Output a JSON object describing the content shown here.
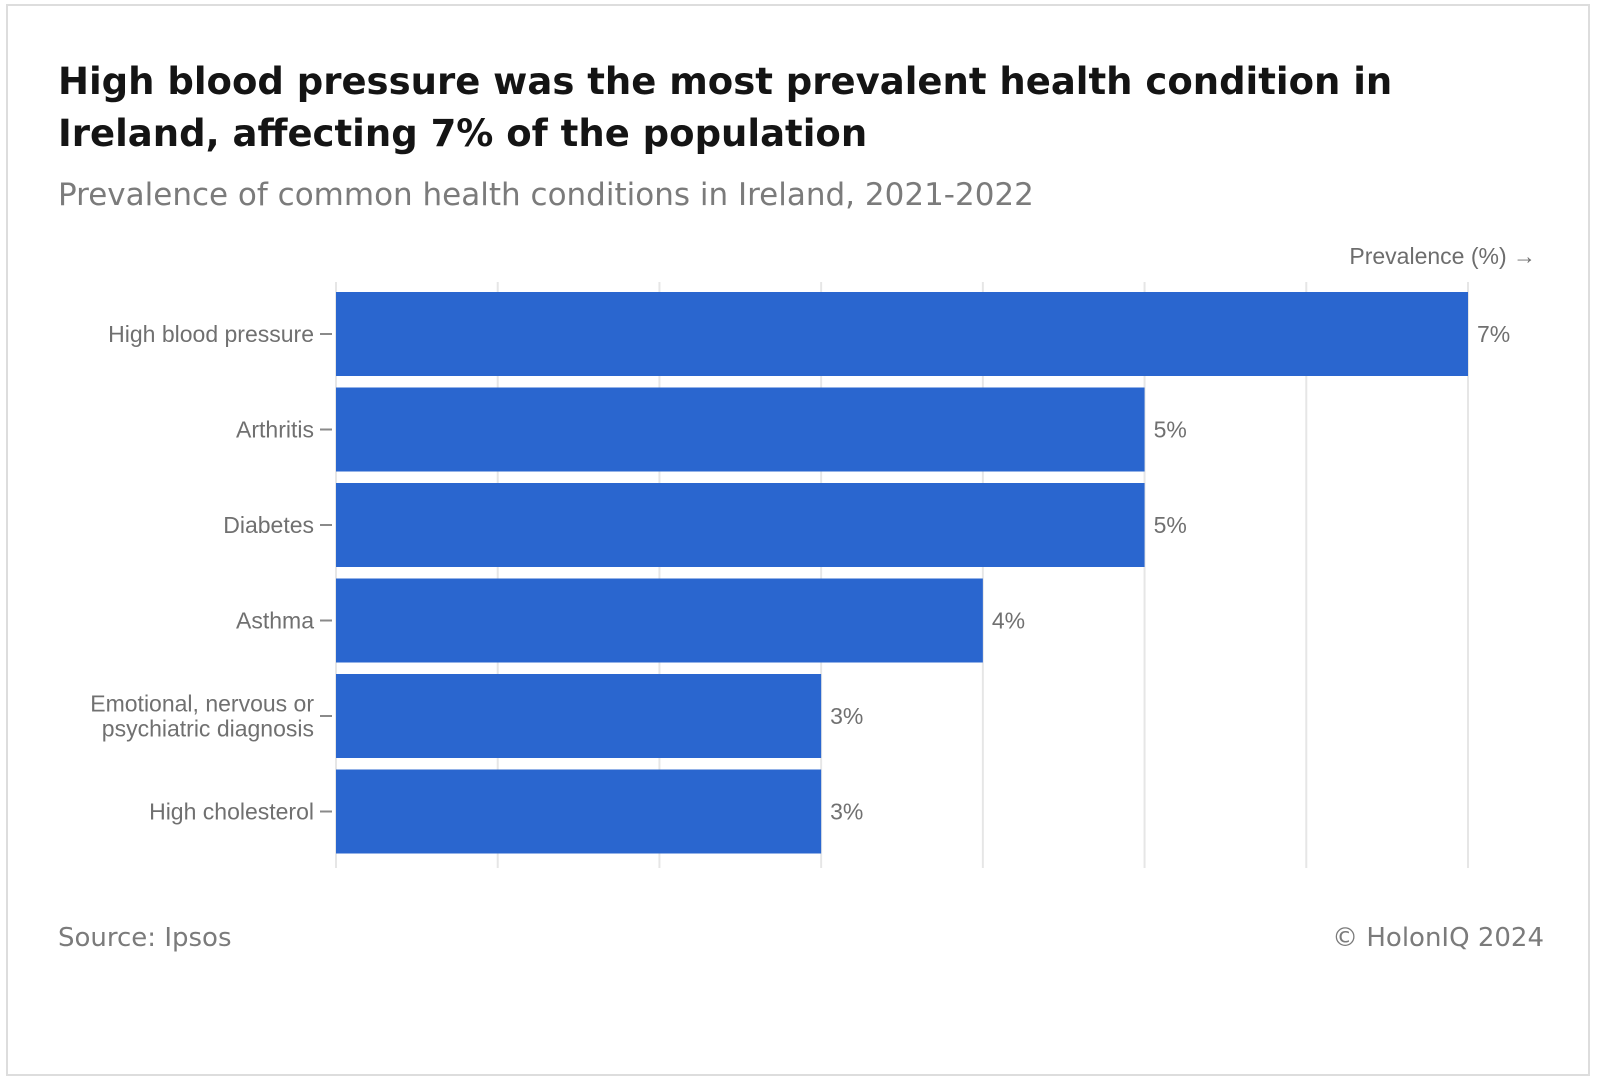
{
  "title": "High blood pressure was the most prevalent health condition in Ireland, affecting 7% of the population",
  "subtitle": "Prevalence of common health conditions in Ireland, 2021-2022",
  "footer": {
    "source": "Source: Ipsos",
    "copyright": "© HolonIQ 2024"
  },
  "colors": {
    "bar": "#2a66cf",
    "grid": "#e6e6e6",
    "axis_text": "#707070"
  },
  "chart_data": {
    "type": "bar",
    "orientation": "horizontal",
    "categories": [
      "High blood pressure",
      "Arthritis",
      "Diabetes",
      "Asthma",
      "Emotional, nervous or psychiatric diagnosis",
      "High cholesterol"
    ],
    "category_lines": [
      [
        "High blood pressure"
      ],
      [
        "Arthritis"
      ],
      [
        "Diabetes"
      ],
      [
        "Asthma"
      ],
      [
        "Emotional, nervous or",
        "psychiatric diagnosis"
      ],
      [
        "High cholesterol"
      ]
    ],
    "values": [
      7,
      5,
      5,
      4,
      3,
      3
    ],
    "value_labels": [
      "7%",
      "5%",
      "5%",
      "4%",
      "3%",
      "3%"
    ],
    "xlabel": "Prevalence (%) →",
    "ylabel": "",
    "xlim": [
      0,
      7
    ],
    "grid": true
  }
}
